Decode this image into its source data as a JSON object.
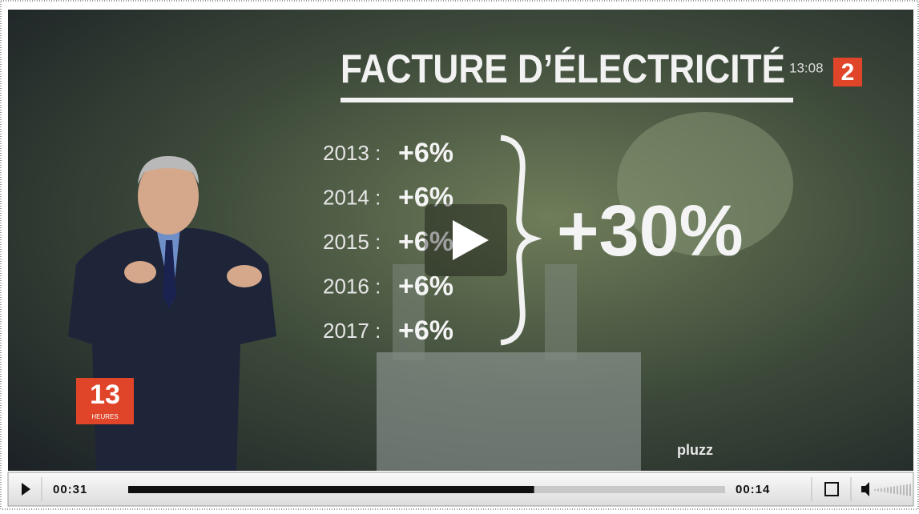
{
  "video": {
    "title": "FACTURE D’ÉLECTRICITÉ",
    "clock": "13:08",
    "channel": "2",
    "rows": [
      {
        "year": "2013 :",
        "change": "+6%"
      },
      {
        "year": "2014 :",
        "change": "+6%"
      },
      {
        "year": "2015 :",
        "change": "+6%"
      },
      {
        "year": "2016 :",
        "change": "+6%"
      },
      {
        "year": "2017 :",
        "change": "+6%"
      }
    ],
    "total": "+30%",
    "logo_number": "13",
    "logo_text": "HEURES",
    "watermark": "pluzz"
  },
  "player": {
    "elapsed": "00:31",
    "remaining": "00:14",
    "progress": 0.68
  }
}
